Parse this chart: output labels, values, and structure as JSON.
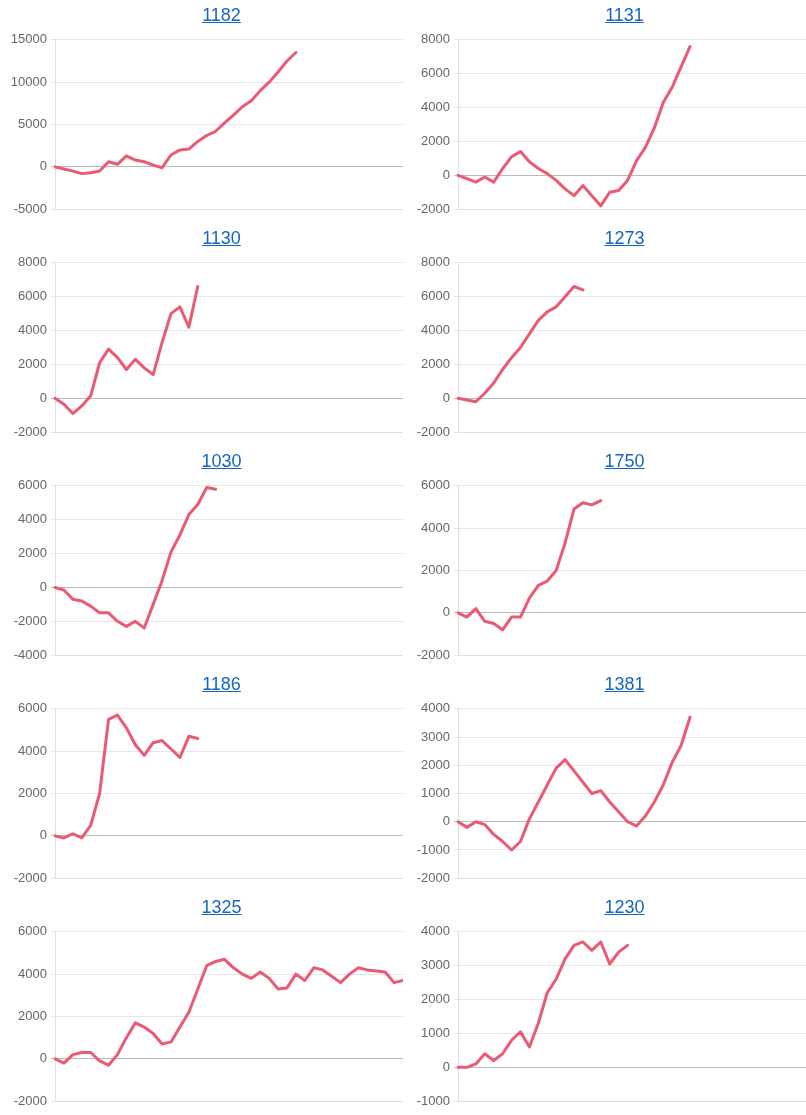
{
  "chart_data": [
    {
      "type": "line",
      "title": "1182",
      "categories": [
        null,
        null,
        null,
        null,
        null,
        null,
        null,
        null,
        null,
        null,
        null,
        null,
        null,
        null,
        null,
        null,
        null,
        null,
        null,
        null,
        null,
        null,
        null,
        null,
        null,
        null,
        null,
        null,
        null,
        null,
        null,
        null,
        null,
        null,
        null,
        null,
        null,
        null,
        null,
        null
      ],
      "values": [
        0,
        -250,
        -500,
        -800,
        -700,
        -500,
        600,
        300,
        1300,
        800,
        600,
        200,
        -100,
        1400,
        2000,
        2100,
        3000,
        3700,
        4200,
        5200,
        6100,
        7100,
        7800,
        9000,
        10000,
        11200,
        12500,
        13500,
        null,
        null,
        null,
        null,
        null,
        null,
        null,
        null,
        null,
        null,
        null,
        null
      ],
      "color": "#eb5a73",
      "ylim": [
        -5000,
        15000
      ],
      "yticks": [
        -5000,
        0,
        5000,
        10000,
        15000
      ],
      "grid": "y",
      "tick_labels": "y",
      "marker": "none",
      "line_style": "solid"
    },
    {
      "type": "line",
      "title": "1131",
      "categories": [
        null,
        null,
        null,
        null,
        null,
        null,
        null,
        null,
        null,
        null,
        null,
        null,
        null,
        null,
        null,
        null,
        null,
        null,
        null,
        null,
        null,
        null,
        null,
        null,
        null,
        null,
        null,
        null,
        null,
        null,
        null,
        null,
        null,
        null,
        null,
        null,
        null,
        null,
        null,
        null
      ],
      "values": [
        0,
        -200,
        -400,
        -100,
        -400,
        400,
        1100,
        1400,
        800,
        400,
        100,
        -300,
        -800,
        -1200,
        -600,
        -1200,
        -1800,
        -1000,
        -900,
        -300,
        850,
        1650,
        2800,
        4300,
        5200,
        6400,
        7600,
        null,
        null,
        null,
        null,
        null,
        null,
        null,
        null,
        null,
        null,
        null,
        null,
        null
      ],
      "color": "#eb5a73",
      "ylim": [
        -2000,
        8000
      ],
      "yticks": [
        -2000,
        0,
        2000,
        4000,
        6000,
        8000
      ],
      "grid": "y",
      "tick_labels": "y",
      "marker": "none",
      "line_style": "solid"
    },
    {
      "type": "line",
      "title": "1130",
      "categories": [
        null,
        null,
        null,
        null,
        null,
        null,
        null,
        null,
        null,
        null,
        null,
        null,
        null,
        null,
        null,
        null,
        null,
        null,
        null,
        null,
        null,
        null,
        null,
        null,
        null,
        null,
        null,
        null,
        null,
        null,
        null,
        null,
        null,
        null,
        null,
        null,
        null,
        null,
        null,
        null
      ],
      "values": [
        0,
        -350,
        -900,
        -450,
        150,
        2100,
        2900,
        2400,
        1700,
        2300,
        1800,
        1400,
        3300,
        5000,
        5400,
        4200,
        6600,
        null,
        null,
        null,
        null,
        null,
        null,
        null,
        null,
        null,
        null,
        null,
        null,
        null,
        null,
        null,
        null,
        null,
        null,
        null,
        null,
        null,
        null,
        null
      ],
      "color": "#eb5a73",
      "ylim": [
        -2000,
        8000
      ],
      "yticks": [
        -2000,
        0,
        2000,
        4000,
        6000,
        8000
      ],
      "grid": "y",
      "tick_labels": "y",
      "marker": "none",
      "line_style": "solid"
    },
    {
      "type": "line",
      "title": "1273",
      "categories": [
        null,
        null,
        null,
        null,
        null,
        null,
        null,
        null,
        null,
        null,
        null,
        null,
        null,
        null,
        null,
        null,
        null,
        null,
        null,
        null,
        null,
        null,
        null,
        null,
        null,
        null,
        null,
        null,
        null,
        null,
        null,
        null,
        null,
        null,
        null,
        null,
        null,
        null,
        null,
        null
      ],
      "values": [
        0,
        -100,
        -200,
        300,
        900,
        1700,
        2400,
        3000,
        3800,
        4600,
        5100,
        5400,
        6000,
        6600,
        6400,
        null,
        null,
        null,
        null,
        null,
        null,
        null,
        null,
        null,
        null,
        null,
        null,
        null,
        null,
        null,
        null,
        null,
        null,
        null,
        null,
        null,
        null,
        null,
        null,
        null
      ],
      "color": "#eb5a73",
      "ylim": [
        -2000,
        8000
      ],
      "yticks": [
        -2000,
        0,
        2000,
        4000,
        6000,
        8000
      ],
      "grid": "y",
      "tick_labels": "y",
      "marker": "none",
      "line_style": "solid"
    },
    {
      "type": "line",
      "title": "1030",
      "categories": [
        null,
        null,
        null,
        null,
        null,
        null,
        null,
        null,
        null,
        null,
        null,
        null,
        null,
        null,
        null,
        null,
        null,
        null,
        null,
        null,
        null,
        null,
        null,
        null,
        null,
        null,
        null,
        null,
        null,
        null,
        null,
        null,
        null,
        null,
        null,
        null,
        null,
        null,
        null,
        null
      ],
      "values": [
        0,
        -150,
        -700,
        -800,
        -1100,
        -1500,
        -1500,
        -2000,
        -2300,
        -2000,
        -2400,
        -1000,
        400,
        2100,
        3100,
        4300,
        4900,
        5900,
        5800,
        null,
        null,
        null,
        null,
        null,
        null,
        null,
        null,
        null,
        null,
        null,
        null,
        null,
        null,
        null,
        null,
        null,
        null,
        null,
        null,
        null
      ],
      "color": "#eb5a73",
      "ylim": [
        -4000,
        6000
      ],
      "yticks": [
        -4000,
        -2000,
        0,
        2000,
        4000,
        6000
      ],
      "grid": "y",
      "tick_labels": "y",
      "marker": "none",
      "line_style": "solid"
    },
    {
      "type": "line",
      "title": "1750",
      "categories": [
        null,
        null,
        null,
        null,
        null,
        null,
        null,
        null,
        null,
        null,
        null,
        null,
        null,
        null,
        null,
        null,
        null,
        null,
        null,
        null,
        null,
        null,
        null,
        null,
        null,
        null,
        null,
        null,
        null,
        null,
        null,
        null,
        null,
        null,
        null,
        null,
        null,
        null,
        null,
        null
      ],
      "values": [
        0,
        -200,
        200,
        -400,
        -500,
        -800,
        -200,
        -200,
        700,
        1300,
        1500,
        2000,
        3300,
        4900,
        5200,
        5100,
        5300,
        null,
        null,
        null,
        null,
        null,
        null,
        null,
        null,
        null,
        null,
        null,
        null,
        null,
        null,
        null,
        null,
        null,
        null,
        null,
        null,
        null,
        null,
        null
      ],
      "color": "#eb5a73",
      "ylim": [
        -2000,
        6000
      ],
      "yticks": [
        -2000,
        0,
        2000,
        4000,
        6000
      ],
      "grid": "y",
      "tick_labels": "y",
      "marker": "none",
      "line_style": "solid"
    },
    {
      "type": "line",
      "title": "1186",
      "categories": [
        null,
        null,
        null,
        null,
        null,
        null,
        null,
        null,
        null,
        null,
        null,
        null,
        null,
        null,
        null,
        null,
        null,
        null,
        null,
        null,
        null,
        null,
        null,
        null,
        null,
        null,
        null,
        null,
        null,
        null,
        null,
        null,
        null,
        null,
        null,
        null,
        null,
        null,
        null,
        null
      ],
      "values": [
        0,
        -100,
        100,
        -100,
        500,
        2000,
        5500,
        5700,
        5100,
        4300,
        3800,
        4400,
        4500,
        4100,
        3700,
        4700,
        4600,
        null,
        null,
        null,
        null,
        null,
        null,
        null,
        null,
        null,
        null,
        null,
        null,
        null,
        null,
        null,
        null,
        null,
        null,
        null,
        null,
        null,
        null,
        null
      ],
      "color": "#eb5a73",
      "ylim": [
        -2000,
        6000
      ],
      "yticks": [
        -2000,
        0,
        2000,
        4000,
        6000
      ],
      "grid": "y",
      "tick_labels": "y",
      "marker": "none",
      "line_style": "solid"
    },
    {
      "type": "line",
      "title": "1381",
      "categories": [
        null,
        null,
        null,
        null,
        null,
        null,
        null,
        null,
        null,
        null,
        null,
        null,
        null,
        null,
        null,
        null,
        null,
        null,
        null,
        null,
        null,
        null,
        null,
        null,
        null,
        null,
        null,
        null,
        null,
        null,
        null,
        null,
        null,
        null,
        null,
        null,
        null,
        null,
        null,
        null
      ],
      "values": [
        0,
        -200,
        0,
        -100,
        -450,
        -700,
        -1000,
        -700,
        100,
        700,
        1300,
        1900,
        2200,
        1800,
        1400,
        1000,
        1100,
        700,
        350,
        0,
        -150,
        200,
        700,
        1300,
        2100,
        2700,
        3700,
        null,
        null,
        null,
        null,
        null,
        null,
        null,
        null,
        null,
        null,
        null,
        null,
        null
      ],
      "color": "#eb5a73",
      "ylim": [
        -2000,
        4000
      ],
      "yticks": [
        -2000,
        -1000,
        0,
        1000,
        2000,
        3000,
        4000
      ],
      "grid": "y",
      "tick_labels": "y",
      "marker": "none",
      "line_style": "solid"
    },
    {
      "type": "line",
      "title": "1325",
      "categories": [
        null,
        null,
        null,
        null,
        null,
        null,
        null,
        null,
        null,
        null,
        null,
        null,
        null,
        null,
        null,
        null,
        null,
        null,
        null,
        null,
        null,
        null,
        null,
        null,
        null,
        null,
        null,
        null,
        null,
        null,
        null,
        null,
        null,
        null,
        null,
        null,
        null,
        null,
        null,
        null
      ],
      "values": [
        0,
        -200,
        200,
        300,
        300,
        -100,
        -300,
        200,
        1000,
        1700,
        1500,
        1200,
        700,
        800,
        1500,
        2200,
        3300,
        4400,
        4600,
        4700,
        4300,
        4000,
        3800,
        4100,
        3800,
        3300,
        3350,
        4000,
        3700,
        4300,
        4200,
        3900,
        3600,
        4000,
        4300,
        4200,
        4150,
        4100,
        3600,
        3700
      ],
      "color": "#eb5a73",
      "ylim": [
        -2000,
        6000
      ],
      "yticks": [
        -2000,
        0,
        2000,
        4000,
        6000
      ],
      "grid": "y",
      "tick_labels": "y",
      "marker": "none",
      "line_style": "solid"
    },
    {
      "type": "line",
      "title": "1230",
      "categories": [
        null,
        null,
        null,
        null,
        null,
        null,
        null,
        null,
        null,
        null,
        null,
        null,
        null,
        null,
        null,
        null,
        null,
        null,
        null,
        null,
        null,
        null,
        null,
        null,
        null,
        null,
        null,
        null,
        null,
        null,
        null,
        null,
        null,
        null,
        null,
        null,
        null,
        null,
        null,
        null
      ],
      "values": [
        0,
        0,
        100,
        400,
        200,
        400,
        800,
        1050,
        600,
        1300,
        2200,
        2600,
        3200,
        3600,
        3700,
        3450,
        3700,
        3050,
        3400,
        3600,
        null,
        null,
        null,
        null,
        null,
        null,
        null,
        null,
        null,
        null,
        null,
        null,
        null,
        null,
        null,
        null,
        null,
        null,
        null,
        null
      ],
      "color": "#eb5a73",
      "ylim": [
        -1000,
        4000
      ],
      "yticks": [
        -1000,
        0,
        1000,
        2000,
        3000,
        4000
      ],
      "grid": "y",
      "tick_labels": "y",
      "marker": "none",
      "line_style": "solid"
    }
  ]
}
